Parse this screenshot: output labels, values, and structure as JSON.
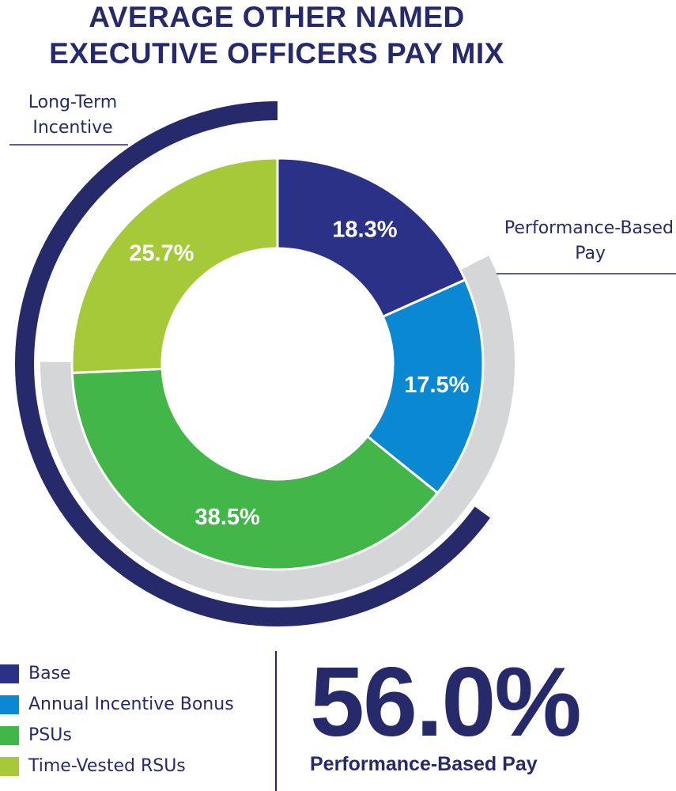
{
  "chart_data": {
    "type": "pie",
    "variant": "donut",
    "title": "AVERAGE OTHER NAMED EXECUTIVE OFFICERS PAY MIX",
    "title_lines": [
      "AVERAGE OTHER NAMED",
      "EXECUTIVE OFFICERS PAY MIX"
    ],
    "slices": [
      {
        "name": "Base",
        "value": 18.3,
        "label": "18.3%",
        "color": "#2b3187"
      },
      {
        "name": "Annual Incentive Bonus",
        "value": 17.5,
        "label": "17.5%",
        "color": "#0a88d1"
      },
      {
        "name": "PSUs",
        "value": 38.5,
        "label": "38.5%",
        "color": "#43b649"
      },
      {
        "name": "Time-Vested RSUs",
        "value": 25.7,
        "label": "25.7%",
        "color": "#a6c93a"
      }
    ],
    "outer_rings": [
      {
        "name": "long-term-incentive",
        "label_lines": [
          "Long-Term",
          "Incentive"
        ],
        "value": 64.2,
        "color": "#262a6b",
        "covers": [
          "PSUs",
          "Time-Vested RSUs"
        ]
      },
      {
        "name": "performance-based-pay",
        "label_lines": [
          "Performance-Based",
          "Pay"
        ],
        "value": 56.0,
        "color": "#d5d6d8",
        "covers": [
          "Annual Incentive Bonus",
          "PSUs"
        ]
      }
    ],
    "legend": [
      {
        "label": "Base",
        "color": "#2b3187"
      },
      {
        "label": "Annual Incentive Bonus",
        "color": "#0a88d1"
      },
      {
        "label": "PSUs",
        "color": "#43b649"
      },
      {
        "label": "Time-Vested RSUs",
        "color": "#a6c93a"
      }
    ],
    "callout": {
      "value": "56.0%",
      "caption": "Performance-Based Pay"
    }
  },
  "colors": {
    "text": "#262a6b",
    "slice_label": "#ffffff",
    "leader_line": "#262a6b"
  }
}
